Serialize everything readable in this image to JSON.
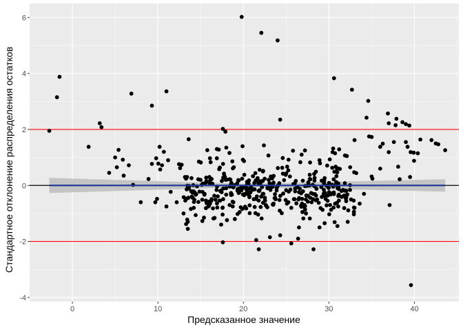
{
  "chart_data": {
    "type": "scatter",
    "title": "",
    "xlabel": "Предсказанное значение",
    "ylabel": "Стандартное отклонение распределения остатков",
    "xlim": [
      -5,
      45.2
    ],
    "ylim": [
      -4.15,
      6.5
    ],
    "x_ticks": [
      0,
      10,
      20,
      30,
      40
    ],
    "x_tick_labels": [
      "0",
      "10",
      "20",
      "30",
      "40"
    ],
    "y_ticks": [
      -4,
      -2,
      0,
      2,
      4,
      6
    ],
    "y_tick_labels": [
      "-4",
      "-2",
      "0",
      "2",
      "4",
      "6"
    ],
    "grid": true,
    "background": "#ebebeb",
    "grid_color": "#ffffff",
    "point_color": "#000000",
    "reference_lines": [
      {
        "y": 2,
        "color": "#ff0000"
      },
      {
        "y": -2,
        "color": "#ff0000"
      },
      {
        "y": 0,
        "color": "#000000"
      }
    ],
    "smooth": {
      "color": "#1f3a93",
      "band_color": "#bdbdbd",
      "x": [
        -2.7,
        43.6
      ],
      "y": [
        0,
        0
      ],
      "band_halfwidth": [
        0.27,
        0.22
      ]
    },
    "points": [
      [
        -2.7,
        1.95
      ],
      [
        -1.8,
        3.15
      ],
      [
        -1.5,
        3.88
      ],
      [
        1.9,
        1.38
      ],
      [
        3.2,
        2.22
      ],
      [
        3.4,
        2.08
      ],
      [
        6.9,
        3.28
      ],
      [
        9.3,
        2.85
      ],
      [
        11.0,
        3.36
      ],
      [
        17.6,
        2.02
      ],
      [
        17.9,
        1.92
      ],
      [
        19.8,
        6.02
      ],
      [
        22.1,
        5.45
      ],
      [
        24.0,
        5.18
      ],
      [
        24.3,
        2.35
      ],
      [
        30.6,
        3.83
      ],
      [
        32.7,
        3.42
      ],
      [
        34.6,
        3.02
      ],
      [
        34.4,
        2.42
      ],
      [
        36.9,
        2.57
      ],
      [
        37.9,
        2.38
      ],
      [
        38.6,
        2.26
      ],
      [
        39.0,
        2.19
      ],
      [
        39.4,
        2.14
      ],
      [
        37.8,
        2.15
      ],
      [
        37.0,
        2.22
      ],
      [
        36.3,
        1.49
      ],
      [
        36.0,
        1.38
      ],
      [
        35.0,
        1.73
      ],
      [
        34.7,
        1.75
      ],
      [
        39.0,
        1.55
      ],
      [
        40.7,
        1.64
      ],
      [
        42.0,
        1.62
      ],
      [
        42.5,
        1.5
      ],
      [
        42.8,
        1.47
      ],
      [
        43.6,
        1.26
      ],
      [
        40.4,
        1.15
      ],
      [
        39.2,
        1.38
      ],
      [
        37.6,
        1.55
      ],
      [
        37.0,
        1.19
      ],
      [
        38.1,
        0.67
      ],
      [
        36.0,
        0.6
      ],
      [
        35.0,
        0.32
      ],
      [
        33.0,
        1.62
      ],
      [
        32.1,
        1.05
      ],
      [
        31.2,
        1.29
      ],
      [
        30.5,
        1.32
      ],
      [
        30.1,
        0.93
      ],
      [
        37.1,
        -0.7
      ],
      [
        39.6,
        -3.56
      ],
      [
        5.0,
        1.0
      ],
      [
        5.4,
        1.27
      ],
      [
        5.9,
        0.92
      ],
      [
        6.6,
        0.72
      ],
      [
        5.2,
        0.65
      ],
      [
        4.3,
        0.45
      ],
      [
        6.0,
        0.35
      ],
      [
        7.1,
        0.02
      ],
      [
        8.0,
        -0.6
      ],
      [
        8.9,
        0.23
      ],
      [
        9.3,
        0.77
      ],
      [
        9.8,
        0.97
      ],
      [
        10.2,
        1.38
      ],
      [
        10.7,
        1.2
      ],
      [
        11.2,
        0.9
      ],
      [
        9.9,
        -0.48
      ],
      [
        9.7,
        -0.6
      ],
      [
        11.5,
        -0.23
      ],
      [
        12.2,
        -0.6
      ],
      [
        13.0,
        -1.0
      ],
      [
        13.5,
        -1.55
      ],
      [
        14.2,
        -0.8
      ],
      [
        13.3,
        -1.38
      ],
      [
        15.2,
        -1.27
      ],
      [
        16.5,
        -1.18
      ],
      [
        17.4,
        -1.4
      ],
      [
        17.6,
        -2.03
      ],
      [
        19.0,
        -1.2
      ],
      [
        21.5,
        -1.95
      ],
      [
        21.8,
        -2.28
      ],
      [
        23.1,
        -1.85
      ],
      [
        24.3,
        -1.78
      ],
      [
        25.6,
        -2.07
      ],
      [
        26.4,
        -1.9
      ],
      [
        28.2,
        -2.28
      ],
      [
        26.5,
        -1.5
      ],
      [
        28.9,
        -1.5
      ],
      [
        29.5,
        -1.35
      ],
      [
        31.0,
        -1.45
      ],
      [
        32.2,
        -1.3
      ],
      [
        33.0,
        -0.8
      ],
      [
        33.6,
        -0.65
      ],
      [
        34.1,
        -0.3
      ],
      [
        13.6,
        1.65
      ],
      [
        16.9,
        1.3
      ],
      [
        18.0,
        1.35
      ],
      [
        19.9,
        1.4
      ],
      [
        22.4,
        1.43
      ],
      [
        24.6,
        0.98
      ],
      [
        27.2,
        1.25
      ],
      [
        27.8,
        0.82
      ],
      [
        28.9,
        0.9
      ],
      [
        11.0,
        -0.75
      ],
      [
        12.6,
        0.62
      ],
      [
        14.8,
        0.85
      ]
    ],
    "cluster_seed": 20
  }
}
